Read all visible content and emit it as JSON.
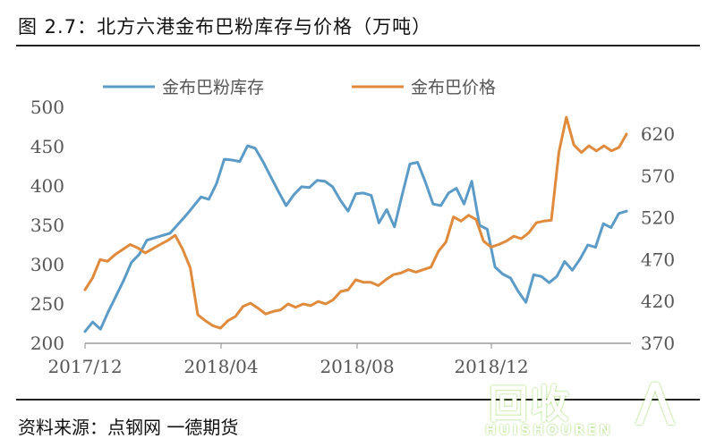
{
  "figure": {
    "title": "图 2.7：北方六港金布巴粉库存与价格（万吨）",
    "source": "资料来源：点钢网  一德期货"
  },
  "watermark": {
    "text": "回收",
    "sub": "HUISHOUREN",
    "mark": "⋀"
  },
  "colors": {
    "inventory": "#5b9bc8",
    "price": "#e08a3c",
    "axis": "#888888",
    "text": "#555555"
  },
  "chart_data": {
    "type": "line",
    "x_ticks": [
      "2017/12",
      "2018/04",
      "2018/08",
      "2018/12"
    ],
    "y_left": {
      "ticks": [
        "200",
        "250",
        "300",
        "350",
        "400",
        "450",
        "500"
      ],
      "range": [
        200,
        500
      ]
    },
    "y_right": {
      "ticks": [
        "370",
        "420",
        "470",
        "520",
        "570",
        "620"
      ],
      "range": [
        370,
        652
      ]
    },
    "series": [
      {
        "name": "金布巴粉库存",
        "axis": "left",
        "values": [
          215,
          227,
          218,
          240,
          260,
          280,
          303,
          313,
          331,
          334,
          337,
          340,
          351,
          362,
          374,
          386,
          383,
          403,
          434,
          433,
          431,
          451,
          448,
          431,
          412,
          393,
          375,
          389,
          399,
          398,
          407,
          406,
          399,
          382,
          368,
          390,
          391,
          388,
          353,
          370,
          348,
          389,
          428,
          430,
          405,
          377,
          375,
          391,
          397,
          377,
          406,
          350,
          345,
          297,
          288,
          283,
          266,
          252,
          287,
          285,
          277,
          285,
          304,
          293,
          307,
          325,
          322,
          352,
          347,
          365,
          368
        ]
      },
      {
        "name": "金布巴价格",
        "axis": "right",
        "values": [
          434,
          448,
          470,
          468,
          476,
          482,
          488,
          484,
          478,
          483,
          488,
          493,
          499,
          482,
          460,
          404,
          397,
          391,
          388,
          397,
          402,
          414,
          418,
          412,
          405,
          408,
          410,
          417,
          413,
          417,
          415,
          420,
          417,
          422,
          432,
          434,
          446,
          443,
          443,
          439,
          446,
          452,
          454,
          458,
          455,
          458,
          461,
          480,
          491,
          521,
          516,
          523,
          518,
          492,
          485,
          488,
          492,
          498,
          495,
          502,
          514,
          516,
          517,
          598,
          640,
          607,
          598,
          606,
          600,
          606,
          600,
          604,
          620
        ]
      }
    ]
  }
}
